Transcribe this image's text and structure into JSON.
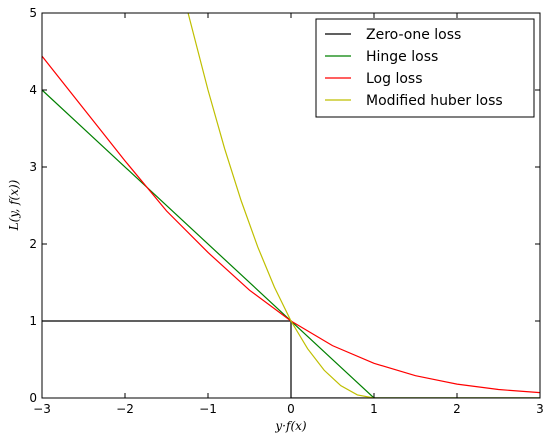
{
  "chart_data": {
    "type": "line",
    "xlabel": "y·f(x)",
    "ylabel": "L(y, f(x))",
    "xlim": [
      -3,
      3
    ],
    "ylim": [
      0,
      5
    ],
    "xticks": [
      -3,
      -2,
      -1,
      0,
      1,
      2,
      3
    ],
    "xtick_labels": [
      "−3",
      "−2",
      "−1",
      "0",
      "1",
      "2",
      "3"
    ],
    "yticks": [
      0,
      1,
      2,
      3,
      4,
      5
    ],
    "ytick_labels": [
      "0",
      "1",
      "2",
      "3",
      "4",
      "5"
    ],
    "grid": false,
    "legend": "top-right",
    "series": [
      {
        "name": "Zero-one loss",
        "color": "#000000",
        "x": [
          -3,
          0,
          0,
          3
        ],
        "y": [
          1,
          1,
          0,
          0
        ]
      },
      {
        "name": "Hinge loss",
        "color": "#008000",
        "x": [
          -3,
          1,
          3
        ],
        "y": [
          4,
          0,
          0
        ]
      },
      {
        "name": "Log loss",
        "color": "#ff0000",
        "x": [
          -3,
          -2.5,
          -2,
          -1.5,
          -1,
          -0.5,
          0,
          0.5,
          1,
          1.5,
          2,
          2.5,
          3
        ],
        "y": [
          4.44,
          3.76,
          3.08,
          2.43,
          1.89,
          1.4,
          1.0,
          0.68,
          0.45,
          0.29,
          0.18,
          0.11,
          0.07
        ]
      },
      {
        "name": "Modified huber loss",
        "color": "#bfbf00",
        "x": [
          -1.24,
          -1.0,
          -0.8,
          -0.6,
          -0.4,
          -0.2,
          0,
          0.2,
          0.4,
          0.6,
          0.8,
          1,
          3
        ],
        "y": [
          5.0,
          4.0,
          3.24,
          2.56,
          1.96,
          1.44,
          1.0,
          0.64,
          0.36,
          0.16,
          0.04,
          0,
          0
        ]
      }
    ]
  }
}
